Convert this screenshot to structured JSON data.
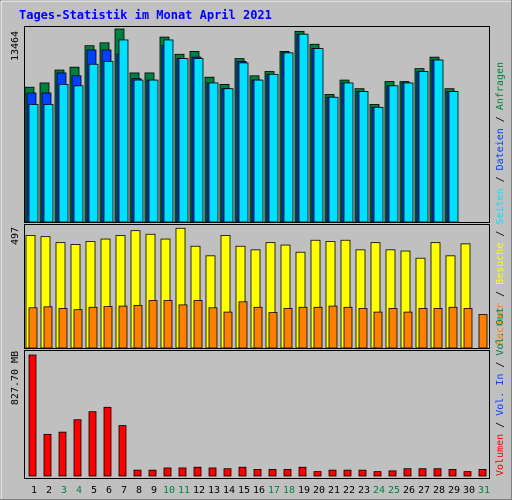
{
  "title": "Tages-Statistik im Monat April 2021",
  "colors": {
    "background": "#c0c0c0",
    "title": "#0000ff",
    "anfragen": "#008040",
    "dateien": "#0040ff",
    "seiten": "#00e0ff",
    "besuche": "#ffff00",
    "rechner": "#ff8000",
    "volumen": "#ff0000",
    "weekend_label": "#008040",
    "weekday_label": "#000000",
    "vol_in": "#ff8000",
    "vol_out": "#008040"
  },
  "chart_data": [
    {
      "type": "bar",
      "panel": "hits",
      "ymax_label": "13464",
      "ylim": [
        0,
        13464
      ],
      "categories": [
        "1",
        "2",
        "3",
        "4",
        "5",
        "6",
        "7",
        "8",
        "9",
        "10",
        "11",
        "12",
        "13",
        "14",
        "15",
        "16",
        "17",
        "18",
        "19",
        "20",
        "21",
        "22",
        "23",
        "24",
        "25",
        "26",
        "27",
        "28",
        "29",
        "30",
        "31"
      ],
      "weekend_days": [
        "3",
        "4",
        "10",
        "11",
        "17",
        "18",
        "24",
        "25",
        "31"
      ],
      "series": [
        {
          "name": "Anfragen",
          "values": [
            9400,
            9700,
            10600,
            10800,
            12300,
            12500,
            13464,
            10400,
            10400,
            12900,
            11700,
            11900,
            10100,
            9600,
            11400,
            10200,
            10500,
            11900,
            13300,
            12400,
            8900,
            9900,
            9300,
            8200,
            9800,
            9800,
            10700,
            11500,
            9300,
            0,
            0
          ]
        },
        {
          "name": "Dateien",
          "values": [
            9000,
            9000,
            10400,
            10200,
            12000,
            12000,
            11700,
            10000,
            9900,
            12300,
            11400,
            11500,
            9700,
            9300,
            11200,
            9900,
            10300,
            11800,
            13100,
            12100,
            8700,
            9700,
            9100,
            8000,
            9500,
            9700,
            10500,
            11300,
            9100,
            0,
            0
          ]
        },
        {
          "name": "Seiten",
          "values": [
            8200,
            8200,
            9600,
            9500,
            11000,
            11200,
            12700,
            9900,
            9900,
            12700,
            11400,
            11400,
            9700,
            9300,
            11100,
            9900,
            10300,
            11800,
            13100,
            12100,
            8700,
            9700,
            9100,
            8000,
            9500,
            9700,
            10500,
            11300,
            9100,
            0,
            0
          ]
        }
      ]
    },
    {
      "type": "bar",
      "panel": "visits",
      "ymax_label": "497",
      "ylim": [
        0,
        497
      ],
      "series": [
        {
          "name": "Besuche",
          "values": [
            470,
            465,
            440,
            432,
            445,
            455,
            470,
            490,
            475,
            455,
            500,
            425,
            385,
            470,
            425,
            410,
            440,
            430,
            400,
            450,
            445,
            450,
            410,
            440,
            410,
            405,
            375,
            440,
            385,
            435,
            0
          ]
        },
        {
          "name": "Rechner",
          "values": [
            168,
            172,
            165,
            160,
            170,
            173,
            175,
            178,
            198,
            198,
            180,
            198,
            168,
            150,
            193,
            170,
            148,
            165,
            170,
            170,
            175,
            170,
            165,
            150,
            165,
            150,
            165,
            165,
            170,
            165,
            140
          ]
        }
      ]
    },
    {
      "type": "bar",
      "panel": "volume",
      "ymax_label": "827.70 MB",
      "ylim": [
        0,
        827.7
      ],
      "series": [
        {
          "name": "Volumen",
          "values": [
            827.7,
            285,
            300,
            385,
            440,
            470,
            345,
            40,
            40,
            55,
            55,
            60,
            55,
            50,
            60,
            45,
            45,
            45,
            60,
            30,
            40,
            40,
            40,
            30,
            35,
            50,
            50,
            50,
            45,
            30,
            45
          ]
        }
      ]
    }
  ],
  "right_labels": {
    "hits": [
      "Anfragen",
      " / ",
      "Dateien",
      " / ",
      "Seiten",
      " / ",
      "Besuche",
      " / ",
      "Rechner",
      " / "
    ],
    "volume": [
      "Vol. Out",
      " / ",
      "Vol. In",
      " / ",
      "Volumen"
    ]
  }
}
